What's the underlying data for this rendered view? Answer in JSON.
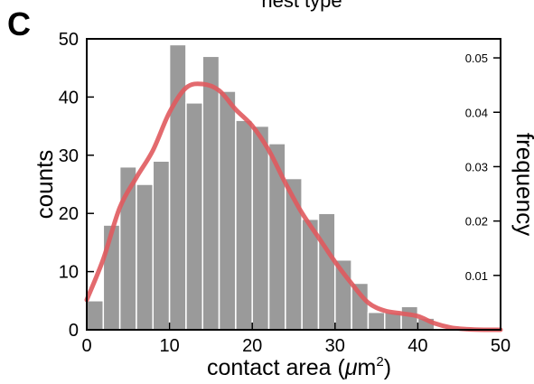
{
  "panel_label": "C",
  "top_caption": "nest type",
  "chart_data": {
    "type": "bar",
    "title": "",
    "xlabel_prefix": "contact area (",
    "xlabel_mu": "μ",
    "xlabel_unit": "m",
    "xlabel_sup": "2",
    "xlabel_suffix": ")",
    "ylabel": "counts",
    "y2label": "frequency",
    "xlim": [
      0,
      50
    ],
    "ylim": [
      0,
      50
    ],
    "y2lim": [
      0,
      0.0535
    ],
    "xticks": [
      0,
      10,
      20,
      30,
      40,
      50
    ],
    "yticks": [
      0,
      10,
      20,
      30,
      40,
      50
    ],
    "y2ticks": [
      "0.01",
      "0.02",
      "0.03",
      "0.04",
      "0.05"
    ],
    "bin_width": 2,
    "bins": [
      {
        "x0": 0,
        "value": 5
      },
      {
        "x0": 2,
        "value": 18
      },
      {
        "x0": 4,
        "value": 28
      },
      {
        "x0": 6,
        "value": 25
      },
      {
        "x0": 8,
        "value": 29
      },
      {
        "x0": 10,
        "value": 49
      },
      {
        "x0": 12,
        "value": 39
      },
      {
        "x0": 14,
        "value": 47
      },
      {
        "x0": 16,
        "value": 41
      },
      {
        "x0": 18,
        "value": 36
      },
      {
        "x0": 20,
        "value": 35
      },
      {
        "x0": 22,
        "value": 32
      },
      {
        "x0": 24,
        "value": 26
      },
      {
        "x0": 26,
        "value": 19
      },
      {
        "x0": 28,
        "value": 20
      },
      {
        "x0": 30,
        "value": 12
      },
      {
        "x0": 32,
        "value": 8
      },
      {
        "x0": 34,
        "value": 3
      },
      {
        "x0": 36,
        "value": 3
      },
      {
        "x0": 38,
        "value": 4
      },
      {
        "x0": 40,
        "value": 2
      },
      {
        "x0": 42,
        "value": 0
      },
      {
        "x0": 44,
        "value": 0
      },
      {
        "x0": 46,
        "value": 0
      },
      {
        "x0": 48,
        "value": 0
      }
    ],
    "density_curve": {
      "axis": "frequency",
      "x": [
        0,
        2,
        4,
        6,
        8,
        10,
        12,
        14,
        16,
        18,
        20,
        22,
        24,
        26,
        28,
        30,
        32,
        34,
        36,
        38,
        40,
        42,
        44,
        46,
        48,
        50
      ],
      "y": [
        0.0055,
        0.013,
        0.0225,
        0.028,
        0.033,
        0.04,
        0.0445,
        0.0452,
        0.044,
        0.0405,
        0.0375,
        0.033,
        0.027,
        0.0215,
        0.017,
        0.0125,
        0.0085,
        0.005,
        0.0035,
        0.003,
        0.0025,
        0.0012,
        0.0004,
        0.0001,
        0.0,
        0.0
      ]
    },
    "colors": {
      "bars": "#9a9a9a",
      "bar_edges": "#ffffff",
      "curve": "#e05a5e",
      "axes": "#000000"
    },
    "grid": false
  }
}
